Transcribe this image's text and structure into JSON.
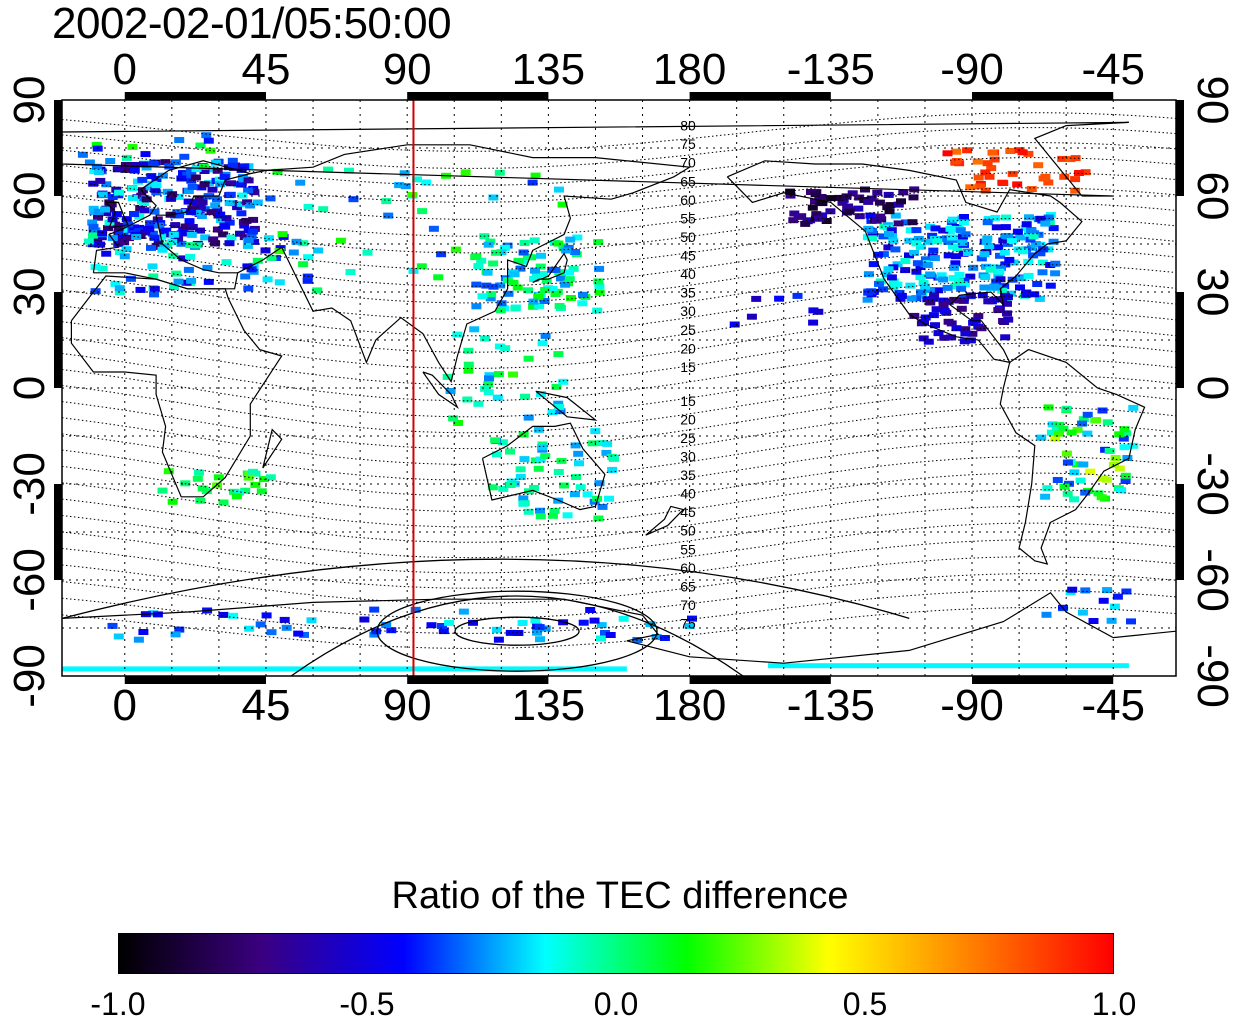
{
  "title": "2002-02-01/05:50:00",
  "map": {
    "top_lon_ticks": [
      "0",
      "45",
      "90",
      "135",
      "180",
      "-135",
      "-90",
      "-45"
    ],
    "bottom_lon_ticks": [
      "0",
      "45",
      "90",
      "135",
      "180",
      "-135",
      "-90",
      "-45"
    ],
    "left_lat_ticks": [
      "90",
      "60",
      "30",
      "0",
      "-30",
      "-60",
      "-90"
    ],
    "right_lat_ticks": [
      "90",
      "60",
      "30",
      "0",
      "-30",
      "-60",
      "-90"
    ],
    "lon_range": [
      -20,
      335
    ],
    "lat_range": [
      -90,
      90
    ],
    "meridian_marker_lon": 92,
    "meridian_marker_color": "#d40000",
    "contour_labels_north": [
      "80",
      "75",
      "70",
      "65",
      "60",
      "55",
      "50",
      "45",
      "40",
      "35",
      "30",
      "25",
      "20",
      "15"
    ],
    "contour_labels_south": [
      "15",
      "20",
      "25",
      "30",
      "35",
      "40",
      "45",
      "50",
      "55",
      "60",
      "65",
      "70",
      "75"
    ]
  },
  "colorbar": {
    "title": "Ratio of the TEC difference",
    "ticks": [
      "-1.0",
      "-0.5",
      "0.0",
      "0.5",
      "1.0"
    ],
    "range": [
      -1.0,
      1.0
    ],
    "colors": [
      "#000000",
      "#3a0080",
      "#0000ff",
      "#00ffff",
      "#00ff00",
      "#ffff00",
      "#ff8000",
      "#ff0000"
    ]
  }
}
